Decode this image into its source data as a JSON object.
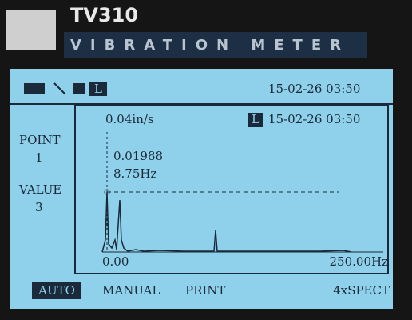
{
  "header": {
    "model": "TV310",
    "subtitle": "VIBRATION METER"
  },
  "status_bar": {
    "mode_icon": "L",
    "datetime": "15-02-26 03:50"
  },
  "side_panel": {
    "point_label": "POINT",
    "point_value": "1",
    "value_label": "VALUE",
    "value_value": "3"
  },
  "plot": {
    "scale": "0.04in/s",
    "mode_icon": "L",
    "datetime": "15-02-26 03:50",
    "cursor_amplitude": "0.01988",
    "cursor_frequency": "8.75Hz",
    "x_start": "0.00",
    "x_end": "250.00Hz"
  },
  "menu": {
    "items": [
      "AUTO",
      "MANUAL",
      "PRINT",
      "4xSPECT"
    ]
  }
}
